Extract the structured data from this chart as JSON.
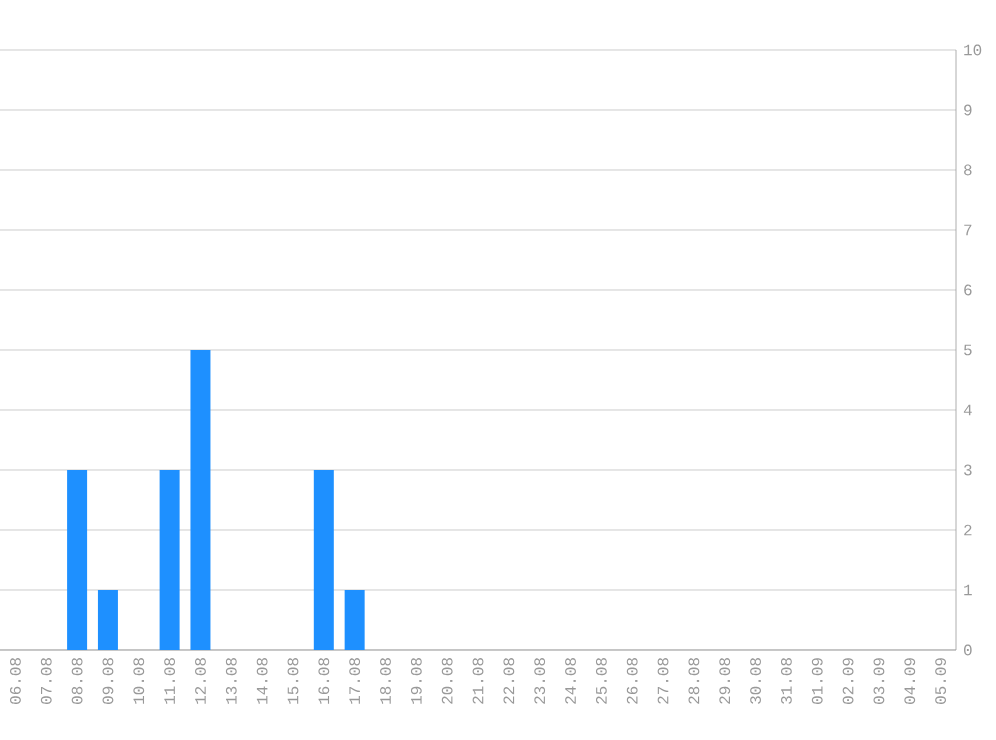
{
  "chart_data": {
    "type": "bar",
    "categories": [
      "06.08",
      "07.08",
      "08.08",
      "09.08",
      "10.08",
      "11.08",
      "12.08",
      "13.08",
      "14.08",
      "15.08",
      "16.08",
      "17.08",
      "18.08",
      "19.08",
      "20.08",
      "21.08",
      "22.08",
      "23.08",
      "24.08",
      "25.08",
      "26.08",
      "27.08",
      "28.08",
      "29.08",
      "30.08",
      "31.08",
      "01.09",
      "02.09",
      "03.09",
      "04.09",
      "05.09"
    ],
    "values": [
      0,
      0,
      3,
      1,
      0,
      3,
      5,
      0,
      0,
      0,
      3,
      1,
      0,
      0,
      0,
      0,
      0,
      0,
      0,
      0,
      0,
      0,
      0,
      0,
      0,
      0,
      0,
      0,
      0,
      0,
      0
    ],
    "color": "#1e90ff",
    "ylim": [
      0,
      10
    ],
    "yticks": [
      0,
      1,
      2,
      3,
      4,
      5,
      6,
      7,
      8,
      9,
      10
    ],
    "grid": "y"
  }
}
